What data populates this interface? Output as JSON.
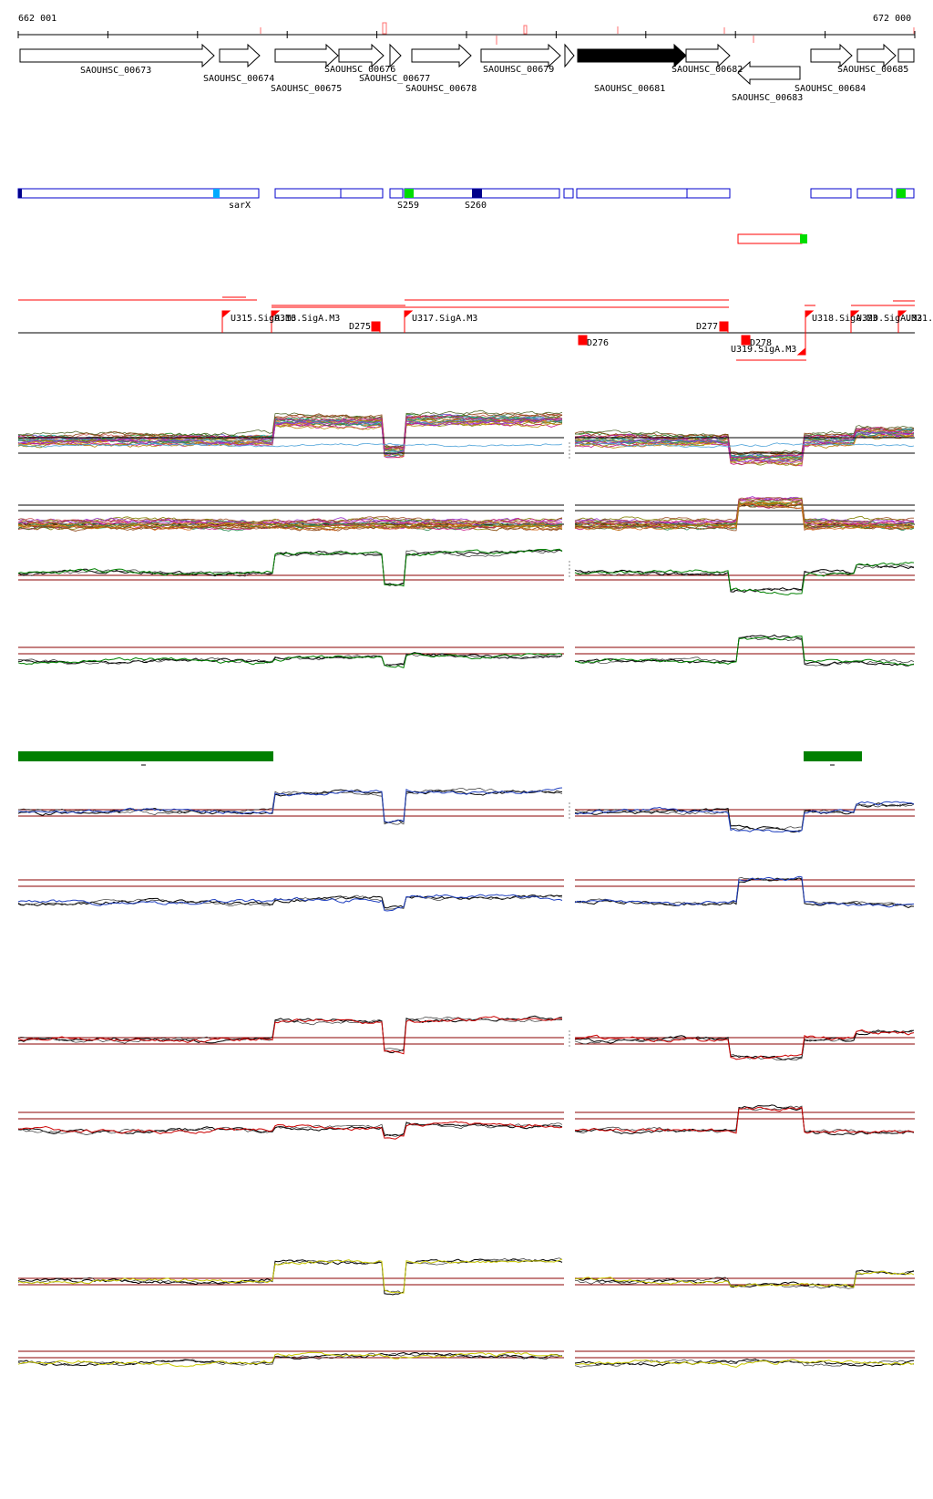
{
  "coords": {
    "start": "662 001",
    "end": "672 000"
  },
  "genes": {
    "g673": "SAOUHSC_00673",
    "g674": "SAOUHSC_00674",
    "g675": "SAOUHSC_00675",
    "g676": "SAOUHSC_00676",
    "g677": "SAOUHSC_00677",
    "g678": "SAOUHSC_00678",
    "g679": "SAOUHSC_00679",
    "g681": "SAOUHSC_00681",
    "g682": "SAOUHSC_00682",
    "g683": "SAOUHSC_00683",
    "g684": "SAOUHSC_00684",
    "g685": "SAOUHSC_00685"
  },
  "segments": {
    "sarX": "sarX",
    "s259": "S259",
    "s260": "S260"
  },
  "sites": {
    "u315": "U315.SigA.M3",
    "u316": "U316.SigA.M3",
    "u317": "U317.SigA.M3",
    "u318": "U318.SigA.M3",
    "u319": "U319.SigA.M3",
    "u320": "U320.SigA.M3",
    "u321": "U321.",
    "d275": "D275",
    "d276": "D276",
    "d277": "D277",
    "d278": "D278"
  },
  "colors": {
    "gene_outline": "#000000",
    "gene_highlight": "#000000",
    "segment_blue": "#0000cc",
    "segment_green": "#00dd00",
    "segment_lightblue": "#00aaff",
    "segment_navy": "#00008b",
    "site_red": "#ff0000",
    "region_green": "#008000",
    "threshold": "#8b0000",
    "series_green": "#008000",
    "series_blue": "#1f3fbf",
    "series_red": "#cc0000",
    "series_yellow": "#c8c800"
  }
}
